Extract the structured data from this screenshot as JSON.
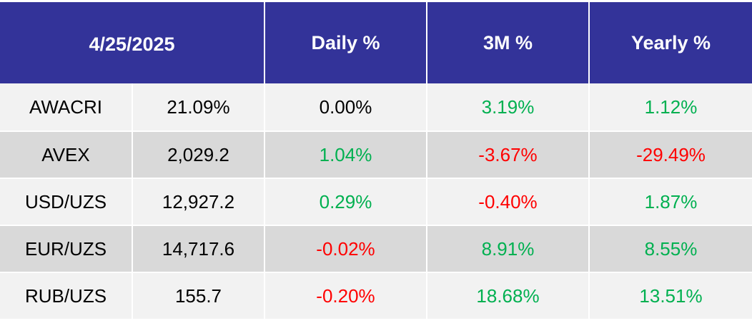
{
  "header": {
    "date": "4/25/2025",
    "daily": "Daily %",
    "three_month": "3M %",
    "yearly": "Yearly %"
  },
  "colors": {
    "header_bg": "#333399",
    "row_light": "#f2f2f2",
    "row_dark": "#d9d9d9",
    "positive": "#00b050",
    "negative": "#ff0000"
  },
  "rows": [
    {
      "name": "AWACRI",
      "value": "21.09%",
      "daily": "0.00%",
      "three_month": "3.19%",
      "yearly": "1.12%"
    },
    {
      "name": "AVEX",
      "value": "2,029.2",
      "daily": "1.04%",
      "three_month": "-3.67%",
      "yearly": "-29.49%"
    },
    {
      "name": "USD/UZS",
      "value": "12,927.2",
      "daily": "0.29%",
      "three_month": "-0.40%",
      "yearly": "1.87%"
    },
    {
      "name": "EUR/UZS",
      "value": "14,717.6",
      "daily": "-0.02%",
      "three_month": "8.91%",
      "yearly": "8.55%"
    },
    {
      "name": "RUB/UZS",
      "value": "155.7",
      "daily": "-0.20%",
      "three_month": "18.68%",
      "yearly": "13.51%"
    }
  ]
}
